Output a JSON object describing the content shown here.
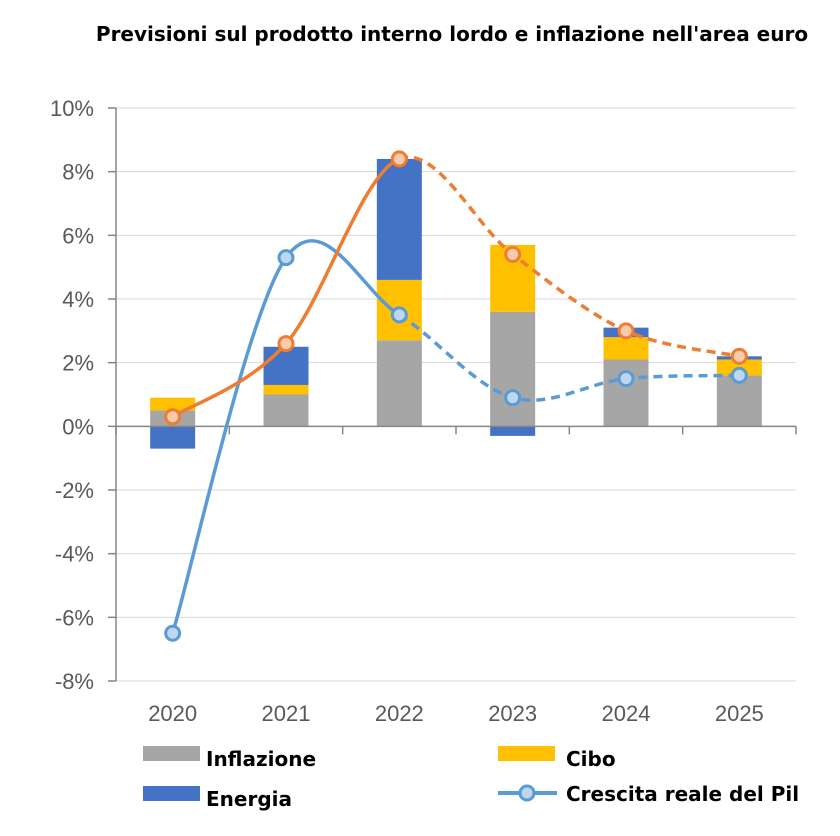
{
  "chart_data": {
    "type": "bar",
    "title": "Previsioni sul prodotto interno lordo e inflazione nell'area euro",
    "categories": [
      "2020",
      "2021",
      "2022",
      "2023",
      "2024",
      "2025"
    ],
    "y_ticks": [
      "10%",
      "8%",
      "6%",
      "4%",
      "2%",
      "0%",
      "-2%",
      "-4%",
      "-6%",
      "-8%"
    ],
    "ylim": [
      -8,
      10
    ],
    "grid": true,
    "legend_placement": "bottom",
    "series": [
      {
        "name": "Inflazione",
        "kind": "bar-stack",
        "color": "#a6a6a6",
        "values": [
          0.5,
          1.0,
          2.7,
          3.6,
          2.1,
          1.6
        ]
      },
      {
        "name": "Cibo",
        "kind": "bar-stack",
        "color": "#ffc000",
        "values": [
          0.4,
          0.3,
          1.9,
          2.1,
          0.7,
          0.5
        ]
      },
      {
        "name": "Energia",
        "kind": "bar-stack",
        "color": "#4472c4",
        "values": [
          -0.7,
          1.2,
          3.8,
          -0.3,
          0.3,
          0.1
        ]
      },
      {
        "name": "Crescita reale del Pil",
        "kind": "line",
        "color": "#5b9bd5",
        "values": [
          -6.5,
          5.3,
          3.5,
          0.9,
          1.5,
          1.6
        ],
        "dashed_from_index": 2
      },
      {
        "name": "",
        "kind": "line",
        "color": "#ed7d31",
        "values": [
          0.3,
          2.6,
          8.4,
          5.4,
          3.0,
          2.2
        ],
        "dashed_from_index": 2
      }
    ]
  }
}
